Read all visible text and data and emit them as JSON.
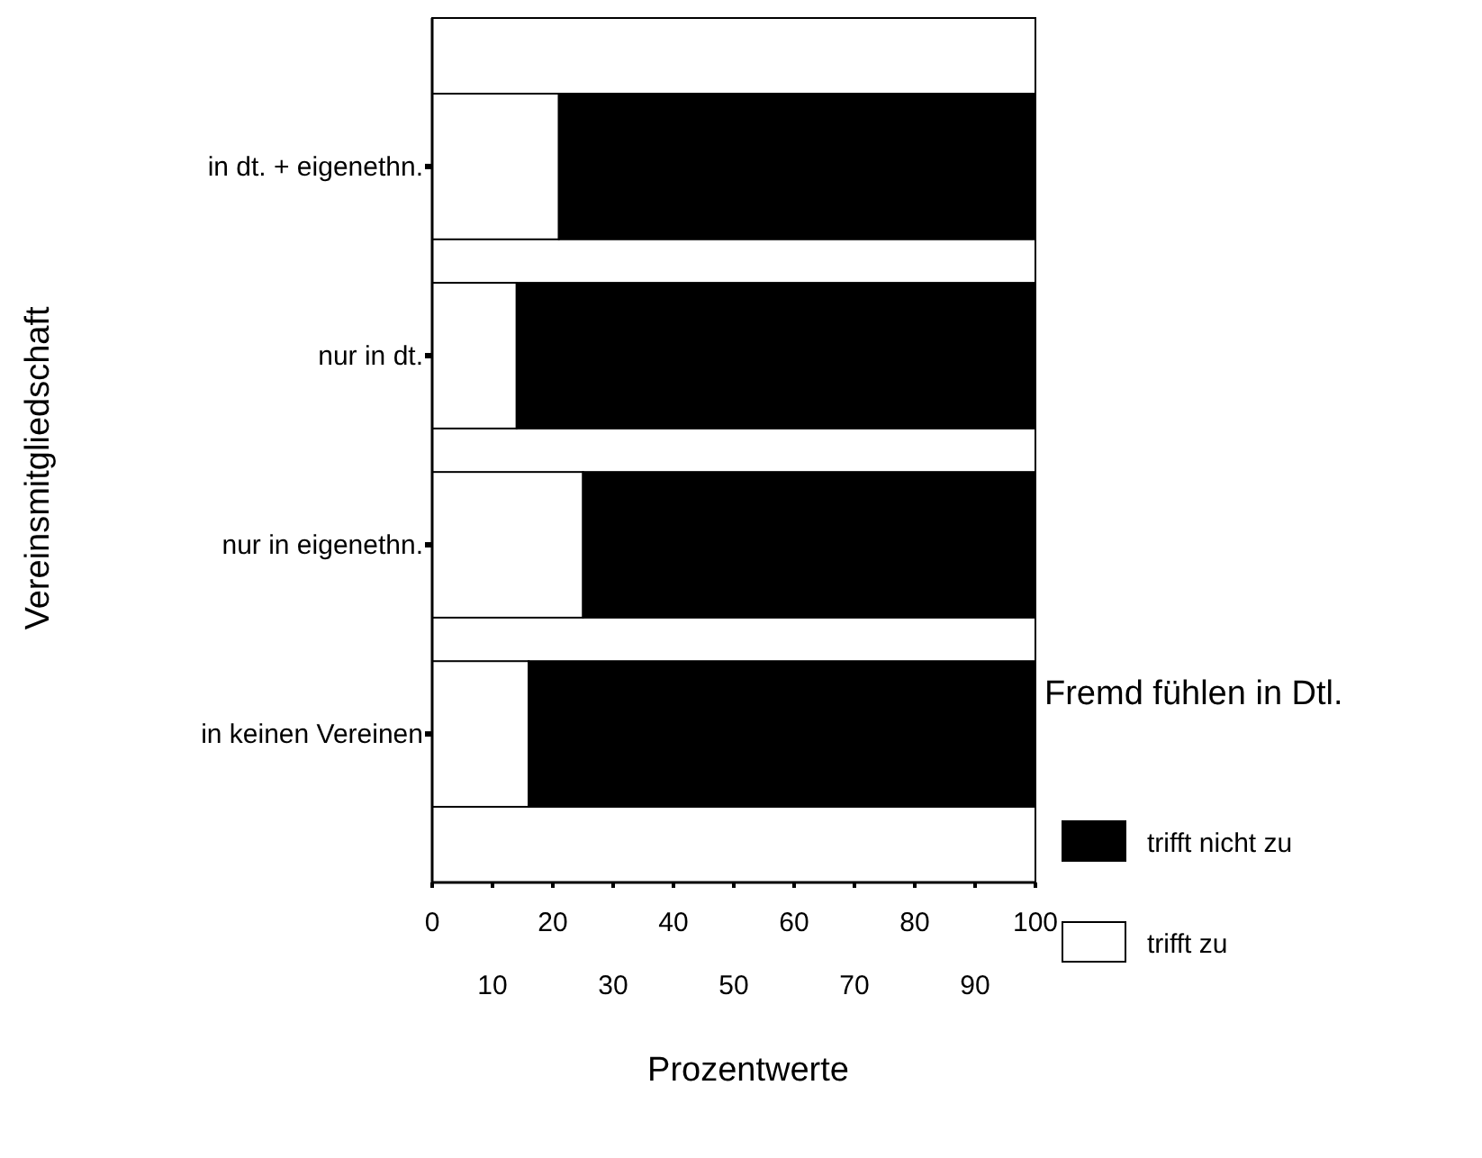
{
  "chart_data": {
    "type": "bar",
    "orientation": "horizontal",
    "stacked": true,
    "categories": [
      "in dt. + eigenethn.",
      "nur in dt.",
      "nur in eigenethn.",
      "in keinen Vereinen"
    ],
    "series": [
      {
        "name": "trifft zu",
        "color": "#ffffff",
        "values": [
          21,
          14,
          25,
          16
        ]
      },
      {
        "name": "trifft nicht zu",
        "color": "#000000",
        "values": [
          79,
          86,
          75,
          84
        ]
      }
    ],
    "xlim": [
      0,
      100
    ],
    "xticks": [
      0,
      {
        "value": 10,
        "label": null
      },
      20,
      {
        "value": 30,
        "label": null
      },
      40,
      {
        "value": 50,
        "label": null
      },
      60,
      {
        "value": 70,
        "label": null
      },
      80,
      {
        "value": 90,
        "label": null
      },
      100
    ],
    "x2lim": [
      0,
      100
    ],
    "x2ticks": [
      10,
      30,
      50,
      70,
      90
    ],
    "xlabel": "Prozentwerte",
    "ylabel": "Vereinsmitgliedschaft",
    "legend_title": "Fremd fühlen in Dtl.",
    "legend": "right",
    "grid": false
  }
}
